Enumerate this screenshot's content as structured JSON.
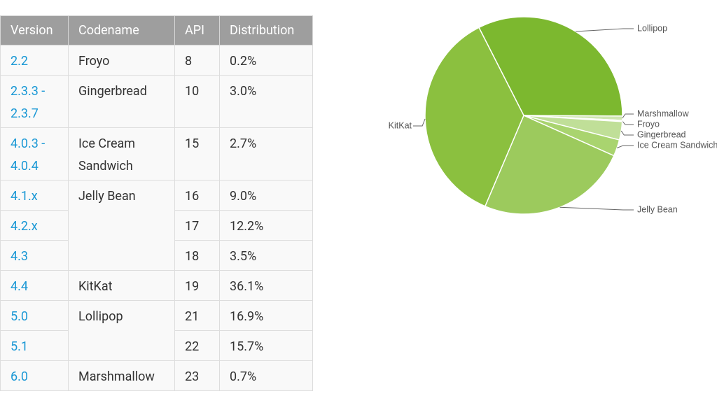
{
  "table": {
    "header": [
      "Version",
      "Codename",
      "API",
      "Distribution"
    ],
    "rows": [
      {
        "version": "2.2",
        "codename": "Froyo",
        "api": "8",
        "distribution": "0.2%"
      },
      {
        "version": "2.3.3 - 2.3.7",
        "codename": "Gingerbread",
        "api": "10",
        "distribution": "3.0%"
      },
      {
        "version": "4.0.3 - 4.0.4",
        "codename": "Ice Cream Sandwich",
        "api": "15",
        "distribution": "2.7%"
      },
      {
        "version": "4.1.x",
        "codename": "Jelly Bean",
        "api": "16",
        "distribution": "9.0%"
      },
      {
        "version": "4.2.x",
        "api": "17",
        "distribution": "12.2%"
      },
      {
        "version": "4.3",
        "api": "18",
        "distribution": "3.5%"
      },
      {
        "version": "4.4",
        "codename": "KitKat",
        "api": "19",
        "distribution": "36.1%"
      },
      {
        "version": "5.0",
        "codename": "Lollipop",
        "api": "21",
        "distribution": "16.9%"
      },
      {
        "version": "5.1",
        "api": "22",
        "distribution": "15.7%"
      },
      {
        "version": "6.0",
        "codename": "Marshmallow",
        "api": "23",
        "distribution": "0.7%"
      }
    ]
  },
  "chart_data": {
    "type": "pie",
    "categories": [
      "Lollipop",
      "Marshmallow",
      "Froyo",
      "Gingerbread",
      "Ice Cream Sandwich",
      "Jelly Bean",
      "KitKat"
    ],
    "values": [
      32.6,
      0.7,
      0.2,
      3.0,
      2.7,
      24.7,
      36.1
    ],
    "colors": [
      "#7cb82f",
      "#cfe6b0",
      "#dcedc8",
      "#c0df98",
      "#a9d46f",
      "#9cca5d",
      "#8bc03f"
    ]
  }
}
